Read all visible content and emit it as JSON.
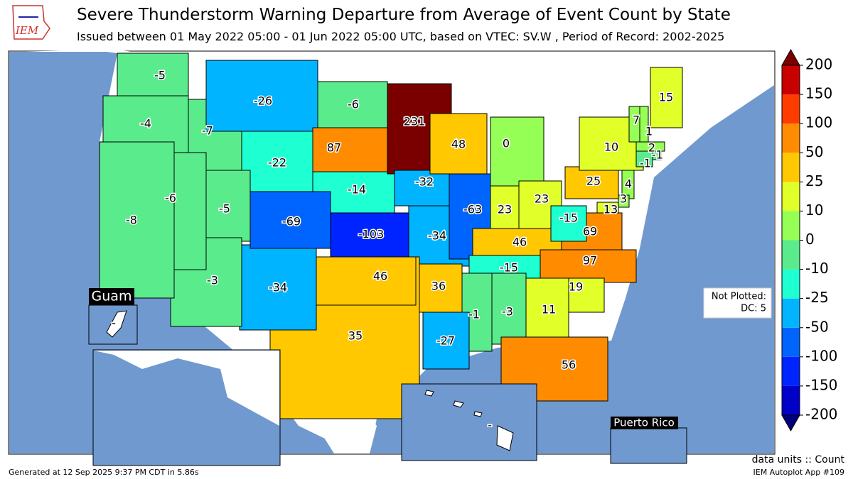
{
  "header": {
    "logo": "IEM",
    "title": "Severe Thunderstorm Warning Departure from Average of Event Count by State",
    "subtitle": "Issued between 01 May 2022 05:00 - 01 Jun 2022 05:00 UTC, based on VTEC: SV.W  , Period of Record: 2002-2025"
  },
  "map": {
    "type": "choropleth",
    "values": [
      -5,
      -4,
      -7,
      -26,
      -22,
      -6,
      87,
      -14,
      231,
      -32,
      -103,
      -34,
      48,
      -63,
      0,
      23,
      23,
      46,
      -15,
      69,
      -15,
      97,
      19,
      11,
      -3,
      -1,
      -27,
      36,
      35,
      46,
      -34,
      -69,
      -5,
      -3,
      -6,
      -8,
      56,
      25,
      10,
      15,
      7,
      1,
      2,
      -1,
      -1,
      4,
      3,
      13,
      0,
      0
    ],
    "value_labels": [
      "-5",
      "-4",
      "-7",
      "-26",
      "-22",
      "-6",
      "87",
      "-14",
      "231",
      "-32",
      "-103",
      "-34",
      "48",
      "-63",
      "0",
      "23",
      "23",
      "46",
      "-15",
      "69",
      "-15",
      "97",
      "19",
      "11",
      "-3",
      "-1",
      "-27",
      "36",
      "35",
      "46",
      "-34",
      "-69",
      "-5",
      "-3",
      "-6",
      "-8",
      "56",
      "25",
      "10",
      "15",
      "7",
      "1",
      "2",
      "-1",
      "-1",
      "4",
      "3",
      "13",
      "-0",
      "-0"
    ],
    "guam": {
      "title": "Guam",
      "label": "-"
    },
    "hawaii": {
      "label": "-"
    },
    "puerto_rico_title": "Puerto Rico",
    "not_plotted": {
      "title": "Not Plotted:",
      "label": "DC: 5"
    }
  },
  "colorbar": {
    "bounds": [
      -200,
      -150,
      -100,
      -50,
      -25,
      -10,
      0,
      10,
      25,
      50,
      100,
      150,
      200
    ],
    "colors": [
      "#0000c8",
      "#0024ff",
      "#0064ff",
      "#00b4ff",
      "#1effd2",
      "#5aeb8c",
      "#96ff55",
      "#e1ff28",
      "#ffc800",
      "#ff8c00",
      "#ff3c00",
      "#c80000"
    ],
    "under_color": "#00007a",
    "over_color": "#7a0000",
    "units": "data units :: Count"
  },
  "footer": {
    "generated": "Generated at 12 Sep 2025 9:37 PM CDT in 5.86s",
    "app": "IEM Autoplot App #109"
  }
}
